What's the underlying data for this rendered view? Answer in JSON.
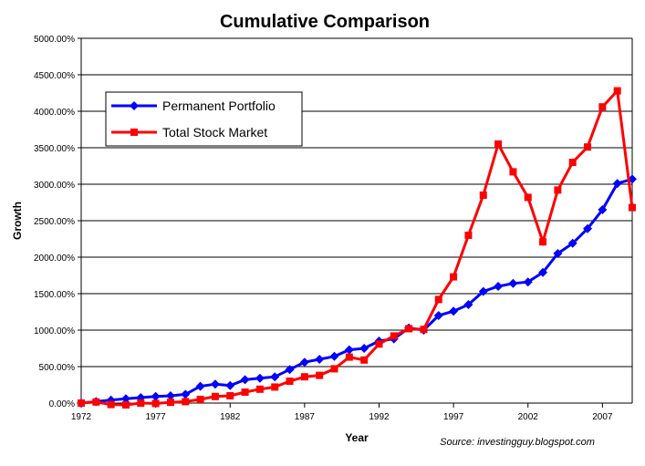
{
  "chart_data": {
    "type": "line",
    "title": "Cumulative Comparison",
    "xlabel": "Year",
    "ylabel": "Growth",
    "source": "Source: investingguy.blogspot.com",
    "xlim": [
      1972,
      2009
    ],
    "ylim": [
      0,
      5000
    ],
    "x_ticks": [
      1972,
      1977,
      1982,
      1987,
      1992,
      1997,
      2002,
      2007
    ],
    "y_ticks": [
      "0.00%",
      "500.00%",
      "1000.00%",
      "1500.00%",
      "2000.00%",
      "2500.00%",
      "3000.00%",
      "3500.00%",
      "4000.00%",
      "4500.00%",
      "5000.00%"
    ],
    "y_tick_values": [
      0,
      500,
      1000,
      1500,
      2000,
      2500,
      3000,
      3500,
      4000,
      4500,
      5000
    ],
    "grid": "horizontal",
    "legend_placement": "top-left",
    "x": [
      1972,
      1973,
      1974,
      1975,
      1976,
      1977,
      1978,
      1979,
      1980,
      1981,
      1982,
      1983,
      1984,
      1985,
      1986,
      1987,
      1988,
      1989,
      1990,
      1991,
      1992,
      1993,
      1994,
      1995,
      1996,
      1997,
      1998,
      1999,
      2000,
      2001,
      2002,
      2003,
      2004,
      2005,
      2006,
      2007,
      2008,
      2009
    ],
    "series": [
      {
        "name": "Permanent Portfolio",
        "color": "#0000ff",
        "marker": "diamond",
        "values": [
          0,
          20,
          40,
          60,
          75,
          90,
          100,
          120,
          230,
          260,
          240,
          320,
          340,
          360,
          460,
          560,
          600,
          640,
          730,
          750,
          850,
          880,
          1030,
          1000,
          1200,
          1260,
          1350,
          1530,
          1600,
          1640,
          1660,
          1790,
          2050,
          2190,
          2390,
          2650,
          3010,
          3070
        ]
      },
      {
        "name": "Total Stock Market",
        "color": "#ff0000",
        "marker": "square",
        "values": [
          0,
          15,
          -20,
          -25,
          0,
          -5,
          10,
          20,
          50,
          90,
          100,
          150,
          190,
          220,
          300,
          360,
          380,
          470,
          630,
          590,
          810,
          920,
          1020,
          1010,
          1420,
          1730,
          2300,
          2850,
          3550,
          3170,
          2820,
          2210,
          2920,
          3300,
          3510,
          4060,
          4280,
          2680
        ]
      }
    ]
  }
}
